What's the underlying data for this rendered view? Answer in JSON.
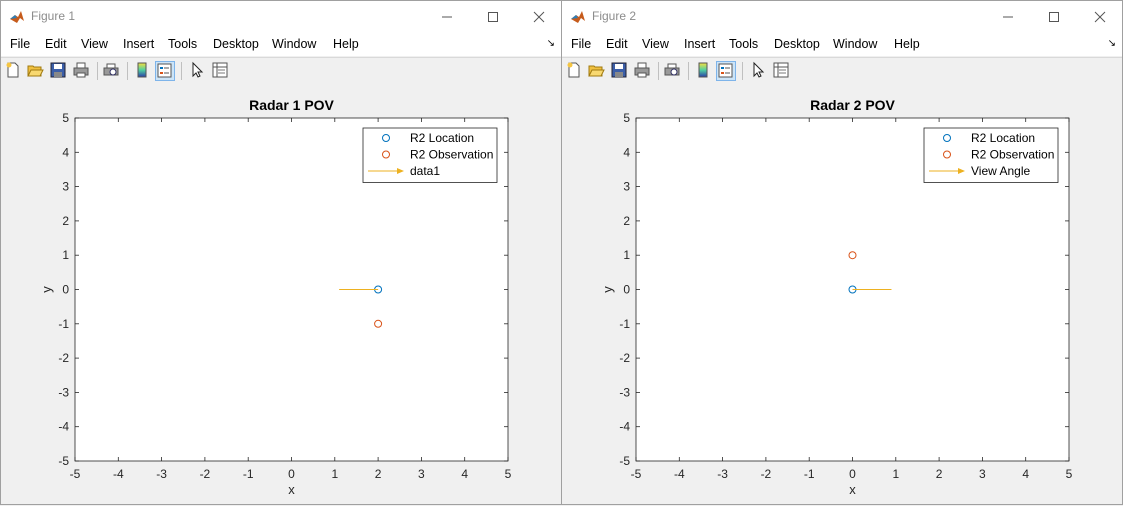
{
  "windows": [
    {
      "title": "Figure 1",
      "menu": [
        "File",
        "Edit",
        "View",
        "Insert",
        "Tools",
        "Desktop",
        "Window",
        "Help"
      ],
      "icons": [
        "new-figure-icon",
        "open-file-icon",
        "save-icon",
        "print-icon",
        "print-preview-icon",
        "colorbar-icon",
        "legend-icon",
        "pointer-icon",
        "property-inspector-icon"
      ]
    },
    {
      "title": "Figure 2",
      "menu": [
        "File",
        "Edit",
        "View",
        "Insert",
        "Tools",
        "Desktop",
        "Window",
        "Help"
      ],
      "icons": [
        "new-figure-icon",
        "open-file-icon",
        "save-icon",
        "print-icon",
        "print-preview-icon",
        "colorbar-icon",
        "legend-icon",
        "pointer-icon",
        "property-inspector-icon"
      ]
    }
  ],
  "colors": {
    "blue": "#0072bd",
    "orange": "#d95319",
    "yellow": "#edb120"
  },
  "chart_data": [
    {
      "type": "scatter",
      "title": "Radar 1 POV",
      "xlabel": "x",
      "ylabel": "y",
      "xlim": [
        -5,
        5
      ],
      "ylim": [
        -5,
        5
      ],
      "xticks": [
        "-5",
        "-4",
        "-3",
        "-2",
        "-1",
        "0",
        "1",
        "2",
        "3",
        "4",
        "5"
      ],
      "yticks": [
        "-5",
        "-4",
        "-3",
        "-2",
        "-1",
        "0",
        "1",
        "2",
        "3",
        "4",
        "5"
      ],
      "grid": false,
      "legend_position": "top-right",
      "series": [
        {
          "name": "R2 Location",
          "kind": "marker",
          "x": [
            2
          ],
          "y": [
            0
          ]
        },
        {
          "name": "R2 Observation",
          "kind": "marker",
          "x": [
            2
          ],
          "y": [
            -1
          ]
        },
        {
          "name": "data1",
          "kind": "line",
          "x": [
            1.1,
            2
          ],
          "y": [
            0,
            0
          ]
        }
      ]
    },
    {
      "type": "scatter",
      "title": "Radar 2 POV",
      "xlabel": "x",
      "ylabel": "y",
      "xlim": [
        -5,
        5
      ],
      "ylim": [
        -5,
        5
      ],
      "xticks": [
        "-5",
        "-4",
        "-3",
        "-2",
        "-1",
        "0",
        "1",
        "2",
        "3",
        "4",
        "5"
      ],
      "yticks": [
        "-5",
        "-4",
        "-3",
        "-2",
        "-1",
        "0",
        "1",
        "2",
        "3",
        "4",
        "5"
      ],
      "grid": false,
      "legend_position": "top-right",
      "series": [
        {
          "name": "R2 Location",
          "kind": "marker",
          "x": [
            0
          ],
          "y": [
            0
          ]
        },
        {
          "name": "R2 Observation",
          "kind": "marker",
          "x": [
            0
          ],
          "y": [
            1
          ]
        },
        {
          "name": "View Angle",
          "kind": "line",
          "x": [
            0,
            0.9
          ],
          "y": [
            0,
            0
          ]
        }
      ]
    }
  ]
}
